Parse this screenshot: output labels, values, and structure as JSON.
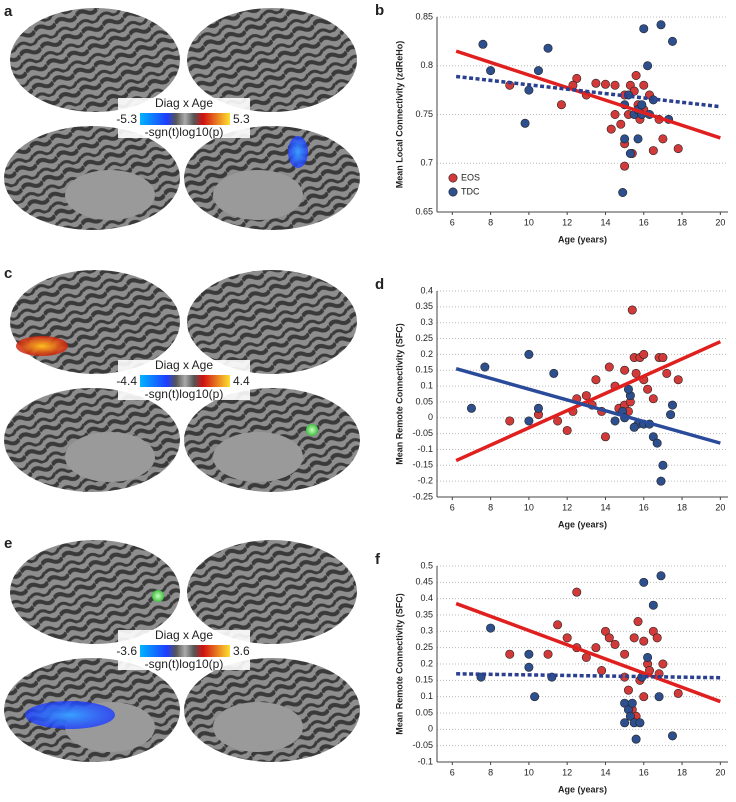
{
  "brain_panels": [
    {
      "letter": "a",
      "colorbar_title": "Diag x Age",
      "min_label": "-5.3",
      "max_label": "5.3",
      "colorbar_label": "-sgn(t)log10(p)"
    },
    {
      "letter": "c",
      "colorbar_title": "Diag x Age",
      "min_label": "-4.4",
      "max_label": "4.4",
      "colorbar_label": "-sgn(t)log10(p)"
    },
    {
      "letter": "e",
      "colorbar_title": "Diag x Age",
      "min_label": "-3.6",
      "max_label": "3.6",
      "colorbar_label": "-sgn(t)log10(p)"
    }
  ],
  "chart_data": [
    {
      "type": "scatter",
      "panel_label": "b",
      "xlabel": "Age (years)",
      "ylabel": "Mean Local Connectivity (zdReHo)",
      "xlim": [
        5.2,
        20.4
      ],
      "xticks": [
        6,
        8,
        10,
        12,
        14,
        16,
        18,
        20
      ],
      "ylim": [
        0.65,
        0.85
      ],
      "yticks": [
        0.65,
        0.7,
        0.75,
        0.8,
        0.85
      ],
      "grid": true,
      "legend": "lower left",
      "series": [
        {
          "name": "EOS",
          "color": "#d23a3a",
          "fit_color": "#e0201e",
          "fit_style": "solid",
          "x": [
            12.5,
            12.3,
            11.7,
            13.5,
            14,
            13,
            14.5,
            15,
            15.3,
            15.5,
            15.7,
            15.2,
            14.5,
            14.3,
            15,
            15,
            15.4,
            16,
            16.3,
            16.8,
            16.5,
            17,
            17.8,
            15.6,
            16,
            9,
            15.8,
            14.8
          ],
          "values": [
            0.787,
            0.78,
            0.76,
            0.782,
            0.781,
            0.77,
            0.78,
            0.77,
            0.78,
            0.774,
            0.76,
            0.75,
            0.75,
            0.735,
            0.72,
            0.697,
            0.71,
            0.755,
            0.77,
            0.745,
            0.713,
            0.725,
            0.715,
            0.79,
            0.78,
            0.78,
            0.745,
            0.74
          ],
          "fit": {
            "x": [
              6.2,
              20
            ],
            "values": [
              0.815,
              0.726
            ]
          }
        },
        {
          "name": "TDC",
          "color": "#2d4f8e",
          "fit_color": "#2a3f8f",
          "fit_style": "dashed",
          "x": [
            7.6,
            8,
            10,
            9.8,
            10.5,
            11,
            15,
            15.2,
            15.5,
            15.7,
            15.9,
            16,
            16.9,
            16.2,
            17.5,
            16.5,
            15,
            14.9,
            15.3,
            15.7,
            16.3,
            17.3,
            15.9
          ],
          "values": [
            0.822,
            0.795,
            0.775,
            0.741,
            0.795,
            0.818,
            0.76,
            0.77,
            0.75,
            0.755,
            0.76,
            0.838,
            0.842,
            0.8,
            0.825,
            0.765,
            0.725,
            0.67,
            0.71,
            0.725,
            0.75,
            0.745,
            0.75
          ],
          "fit": {
            "x": [
              6.2,
              20
            ],
            "values": [
              0.789,
              0.758
            ]
          }
        }
      ]
    },
    {
      "type": "scatter",
      "panel_label": "d",
      "xlabel": "Age (years)",
      "ylabel": "Mean Remote Connectivity (SFC)",
      "xlim": [
        5.2,
        20.4
      ],
      "xticks": [
        6,
        8,
        10,
        12,
        14,
        16,
        18,
        20
      ],
      "ylim": [
        -0.25,
        0.4
      ],
      "yticks": [
        -0.25,
        -0.2,
        -0.15,
        -0.1,
        -0.05,
        0,
        0.05,
        0.1,
        0.15,
        0.2,
        0.25,
        0.3,
        0.35,
        0.4
      ],
      "grid": true,
      "legend": "none",
      "series": [
        {
          "name": "EOS",
          "color": "#d23a3a",
          "fit_color": "#e0201e",
          "fit_style": "solid",
          "x": [
            9,
            10.5,
            11.5,
            12,
            12.3,
            12.5,
            13,
            13.3,
            13.5,
            13.8,
            14,
            14.2,
            14.5,
            14.7,
            15,
            15,
            15.2,
            15.5,
            15.6,
            15.4,
            15.8,
            16,
            16.2,
            16.5,
            16.8,
            17,
            17.2,
            17.8,
            15.3,
            16
          ],
          "values": [
            -0.01,
            0.01,
            -0.01,
            -0.04,
            0.02,
            0.06,
            0.07,
            0.04,
            0.12,
            0.02,
            -0.06,
            0.16,
            0.1,
            0.03,
            0.15,
            0.04,
            0.02,
            0.19,
            0.14,
            0.34,
            0.19,
            0.12,
            0.09,
            0.06,
            0.19,
            0.19,
            0.14,
            0.12,
            0.05,
            0.2
          ],
          "fit": {
            "x": [
              6.2,
              20
            ],
            "values": [
              -0.135,
              0.24
            ]
          }
        },
        {
          "name": "TDC",
          "color": "#2d4f8e",
          "fit_color": "#2a4b9a",
          "fit_style": "solid",
          "x": [
            7,
            7.7,
            10,
            10,
            10.5,
            11.3,
            14.9,
            15,
            15.3,
            15.7,
            16,
            16.3,
            16.5,
            16.7,
            17,
            16.9,
            17.5,
            17.4,
            15.5,
            14.5,
            15.2
          ],
          "values": [
            0.03,
            0.16,
            0.2,
            -0.01,
            0.03,
            0.14,
            0.02,
            0,
            0.07,
            -0.02,
            -0.02,
            -0.02,
            -0.06,
            -0.08,
            -0.15,
            -0.2,
            0.04,
            0.01,
            -0.03,
            -0.01,
            0.09
          ],
          "fit": {
            "x": [
              6.2,
              20
            ],
            "values": [
              0.155,
              -0.08
            ]
          }
        }
      ]
    },
    {
      "type": "scatter",
      "panel_label": "f",
      "xlabel": "Age (years)",
      "ylabel": "Mean Remote Connectivity (SFC)",
      "xlim": [
        5.2,
        20.4
      ],
      "xticks": [
        6,
        8,
        10,
        12,
        14,
        16,
        18,
        20
      ],
      "ylim": [
        -0.1,
        0.5
      ],
      "yticks": [
        -0.1,
        -0.05,
        0,
        0.05,
        0.1,
        0.15,
        0.2,
        0.25,
        0.3,
        0.35,
        0.4,
        0.45,
        0.5
      ],
      "grid": true,
      "legend": "none",
      "series": [
        {
          "name": "EOS",
          "color": "#d23a3a",
          "fit_color": "#e0201e",
          "fit_style": "solid",
          "x": [
            9,
            11,
            11.5,
            12,
            12.5,
            12.5,
            13,
            13.5,
            14,
            14.2,
            13.8,
            14.5,
            15,
            15,
            15.2,
            15.5,
            15.7,
            15.4,
            15.6,
            16,
            16.2,
            16.5,
            16.7,
            16.8,
            17,
            17.8,
            15.8,
            16.3,
            16
          ],
          "values": [
            0.23,
            0.23,
            0.32,
            0.28,
            0.42,
            0.25,
            0.22,
            0.25,
            0.3,
            0.28,
            0.18,
            0.26,
            0.23,
            0.16,
            0.12,
            0.28,
            0.33,
            0.06,
            0.04,
            0.27,
            0.2,
            0.3,
            0.28,
            0.17,
            0.2,
            0.11,
            0.15,
            0.18,
            0.1
          ],
          "fit": {
            "x": [
              6.2,
              20
            ],
            "values": [
              0.385,
              0.085
            ]
          }
        },
        {
          "name": "TDC",
          "color": "#2d4f8e",
          "fit_color": "#2a3f8f",
          "fit_style": "dashed",
          "x": [
            7.5,
            8,
            10,
            10,
            10.3,
            11.2,
            15,
            15.2,
            15.3,
            15.4,
            15.6,
            15.5,
            15.8,
            16,
            16.9,
            16.5,
            16.2,
            16.8,
            17.5,
            15.9,
            15
          ],
          "values": [
            0.16,
            0.31,
            0.23,
            0.19,
            0.1,
            0.16,
            0.08,
            0.06,
            0.04,
            0.08,
            -0.03,
            0.02,
            0.02,
            0.45,
            0.47,
            0.38,
            0.22,
            0.1,
            -0.02,
            0.16,
            0.02
          ],
          "fit": {
            "x": [
              6.2,
              20
            ],
            "values": [
              0.17,
              0.158
            ]
          }
        }
      ]
    }
  ]
}
